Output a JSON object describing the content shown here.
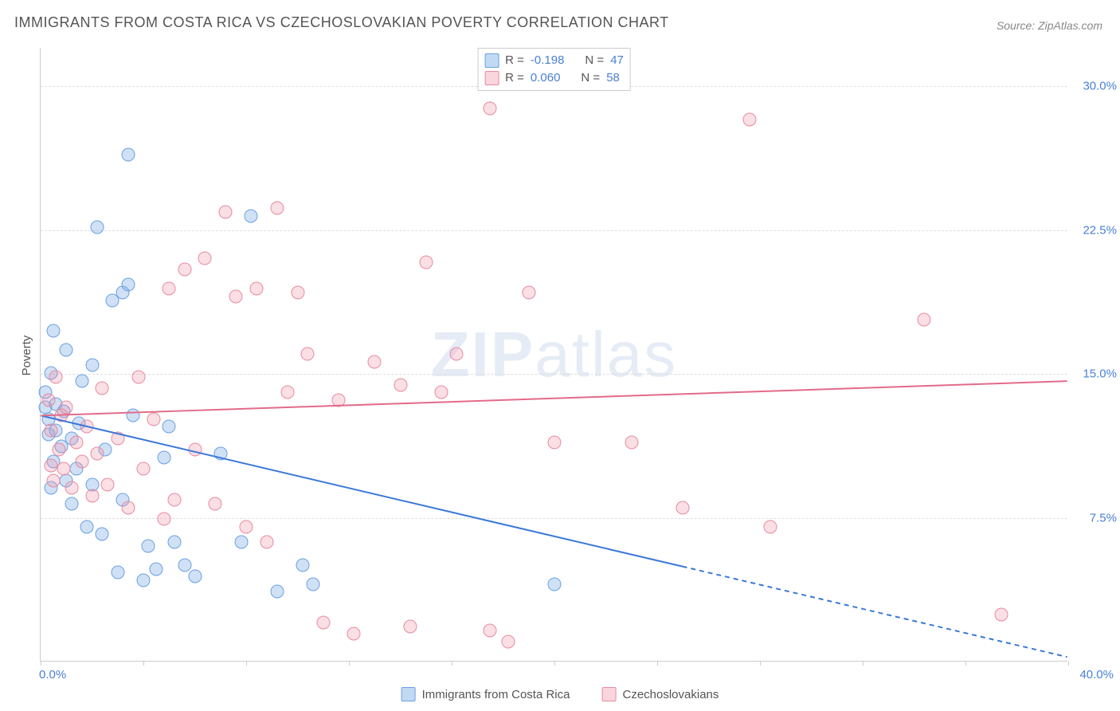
{
  "title": "IMMIGRANTS FROM COSTA RICA VS CZECHOSLOVAKIAN POVERTY CORRELATION CHART",
  "source": "Source: ZipAtlas.com",
  "ylabel": "Poverty",
  "watermark_bold": "ZIP",
  "watermark_rest": "atlas",
  "chart": {
    "type": "scatter",
    "xlim": [
      0,
      40
    ],
    "ylim": [
      0,
      32
    ],
    "x_ticks": [
      "0.0%",
      "40.0%"
    ],
    "y_ticks": [
      {
        "value": 7.5,
        "label": "7.5%"
      },
      {
        "value": 15.0,
        "label": "15.0%"
      },
      {
        "value": 22.5,
        "label": "22.5%"
      },
      {
        "value": 30.0,
        "label": "30.0%"
      }
    ],
    "x_tick_marks": [
      0,
      4,
      8,
      12,
      16,
      20,
      24,
      28,
      32,
      36,
      40
    ],
    "background_color": "#ffffff",
    "grid_color": "#dddddd",
    "axis_color": "#cccccc",
    "marker_size": 17,
    "series": [
      {
        "name": "Immigrants from Costa Rica",
        "color_fill": "rgba(120,170,230,0.35)",
        "color_stroke": "#6aa0e0",
        "R": "-0.198",
        "N": "47",
        "trend": {
          "x1": 0,
          "y1": 12.8,
          "x2": 40,
          "y2": 0.2,
          "solid_until_x": 25,
          "stroke": "#3b78d8",
          "width": 2
        },
        "points": [
          [
            0.2,
            14.0
          ],
          [
            0.2,
            13.2
          ],
          [
            0.3,
            11.8
          ],
          [
            0.3,
            12.6
          ],
          [
            0.4,
            15.0
          ],
          [
            0.4,
            9.0
          ],
          [
            0.5,
            10.4
          ],
          [
            0.5,
            17.2
          ],
          [
            0.6,
            12.0
          ],
          [
            0.6,
            13.4
          ],
          [
            0.8,
            11.2
          ],
          [
            0.9,
            13.0
          ],
          [
            1.0,
            9.4
          ],
          [
            1.0,
            16.2
          ],
          [
            1.2,
            8.2
          ],
          [
            1.2,
            11.6
          ],
          [
            1.4,
            10.0
          ],
          [
            1.5,
            12.4
          ],
          [
            1.6,
            14.6
          ],
          [
            1.8,
            7.0
          ],
          [
            2.0,
            9.2
          ],
          [
            2.0,
            15.4
          ],
          [
            2.2,
            22.6
          ],
          [
            2.4,
            6.6
          ],
          [
            2.5,
            11.0
          ],
          [
            2.8,
            18.8
          ],
          [
            3.0,
            4.6
          ],
          [
            3.2,
            19.2
          ],
          [
            3.2,
            8.4
          ],
          [
            3.4,
            26.4
          ],
          [
            3.4,
            19.6
          ],
          [
            3.6,
            12.8
          ],
          [
            4.0,
            4.2
          ],
          [
            4.2,
            6.0
          ],
          [
            4.5,
            4.8
          ],
          [
            4.8,
            10.6
          ],
          [
            5.0,
            12.2
          ],
          [
            5.2,
            6.2
          ],
          [
            5.6,
            5.0
          ],
          [
            6.0,
            4.4
          ],
          [
            7.0,
            10.8
          ],
          [
            7.8,
            6.2
          ],
          [
            8.2,
            23.2
          ],
          [
            9.2,
            3.6
          ],
          [
            10.2,
            5.0
          ],
          [
            10.6,
            4.0
          ],
          [
            20.0,
            4.0
          ]
        ]
      },
      {
        "name": "Czechoslovakians",
        "color_fill": "rgba(240,150,170,0.30)",
        "color_stroke": "#e88aa0",
        "R": "0.060",
        "N": "58",
        "trend": {
          "x1": 0,
          "y1": 12.8,
          "x2": 40,
          "y2": 14.6,
          "solid_until_x": 40,
          "stroke": "#e26b8a",
          "width": 2
        },
        "points": [
          [
            0.3,
            13.6
          ],
          [
            0.4,
            12.0
          ],
          [
            0.4,
            10.2
          ],
          [
            0.5,
            9.4
          ],
          [
            0.6,
            14.8
          ],
          [
            0.7,
            11.0
          ],
          [
            0.8,
            12.8
          ],
          [
            0.9,
            10.0
          ],
          [
            1.0,
            13.2
          ],
          [
            1.2,
            9.0
          ],
          [
            1.4,
            11.4
          ],
          [
            1.6,
            10.4
          ],
          [
            1.8,
            12.2
          ],
          [
            2.0,
            8.6
          ],
          [
            2.2,
            10.8
          ],
          [
            2.4,
            14.2
          ],
          [
            2.6,
            9.2
          ],
          [
            3.0,
            11.6
          ],
          [
            3.4,
            8.0
          ],
          [
            3.8,
            14.8
          ],
          [
            4.0,
            10.0
          ],
          [
            4.4,
            12.6
          ],
          [
            4.8,
            7.4
          ],
          [
            5.0,
            19.4
          ],
          [
            5.2,
            8.4
          ],
          [
            5.6,
            20.4
          ],
          [
            6.0,
            11.0
          ],
          [
            6.4,
            21.0
          ],
          [
            6.8,
            8.2
          ],
          [
            7.2,
            23.4
          ],
          [
            7.6,
            19.0
          ],
          [
            8.0,
            7.0
          ],
          [
            8.4,
            19.4
          ],
          [
            8.8,
            6.2
          ],
          [
            9.2,
            23.6
          ],
          [
            9.6,
            14.0
          ],
          [
            10.0,
            19.2
          ],
          [
            10.4,
            16.0
          ],
          [
            11.0,
            2.0
          ],
          [
            11.6,
            13.6
          ],
          [
            12.2,
            1.4
          ],
          [
            13.0,
            15.6
          ],
          [
            14.0,
            14.4
          ],
          [
            14.4,
            1.8
          ],
          [
            15.0,
            20.8
          ],
          [
            15.6,
            14.0
          ],
          [
            16.2,
            16.0
          ],
          [
            17.5,
            28.8
          ],
          [
            17.5,
            1.6
          ],
          [
            18.2,
            1.0
          ],
          [
            19.0,
            19.2
          ],
          [
            20.0,
            11.4
          ],
          [
            23.0,
            11.4
          ],
          [
            25.0,
            8.0
          ],
          [
            27.6,
            28.2
          ],
          [
            28.4,
            7.0
          ],
          [
            34.4,
            17.8
          ],
          [
            37.4,
            2.4
          ]
        ]
      }
    ]
  },
  "stat_legend": {
    "r_label": "R =",
    "n_label": "N ="
  },
  "bottom_legend": {
    "label1": "Immigrants from Costa Rica",
    "label2": "Czechoslovakians"
  }
}
